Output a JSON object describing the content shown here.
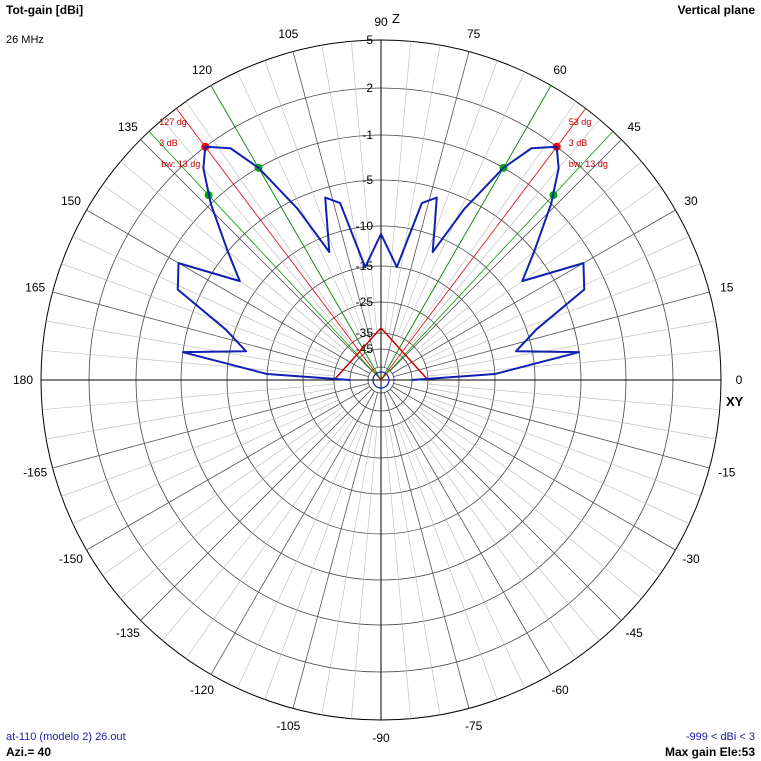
{
  "header": {
    "title_left": "Tot-gain [dBi]",
    "frequency": "26 MHz",
    "title_right": "Vertical plane"
  },
  "footer": {
    "file": "at-110 (modelo 2) 26.out",
    "azimuth": "Azi.= 40",
    "range": "-999 < dBi < 3",
    "max_gain": "Max gain Ele:53"
  },
  "axis_labels": {
    "z": "Z",
    "xy": "XY"
  },
  "colors": {
    "pattern": "#1020b0",
    "grid": "#b8b8b8",
    "axis": "#000000",
    "marker_max": "#ff0000",
    "marker_3db": "#00aa00",
    "beam_line_max": "#e00000",
    "beam_line_3db": "#009900"
  },
  "chart_data": {
    "type": "polar",
    "angle_unit": "deg",
    "angle_ticks": [
      0,
      15,
      30,
      45,
      60,
      75,
      90,
      105,
      120,
      135,
      150,
      165,
      180,
      -165,
      -150,
      -135,
      -120,
      -105,
      -90,
      -75,
      -60,
      -45,
      -30,
      -15
    ],
    "radial_ticks": [
      5,
      2,
      -1,
      -5,
      -10,
      -15,
      -25,
      -35,
      -45
    ],
    "radial_range_dbi": [
      -999,
      3
    ],
    "series": [
      {
        "points": [
          {
            "angle": 0,
            "gain": -45
          },
          {
            "angle": 3,
            "gain": -15
          },
          {
            "angle": 8,
            "gain": -5
          },
          {
            "angle": 12,
            "gain": -12
          },
          {
            "angle": 18,
            "gain": -9
          },
          {
            "angle": 24,
            "gain": -3
          },
          {
            "angle": 30,
            "gain": -2
          },
          {
            "angle": 35,
            "gain": -8
          },
          {
            "angle": 40,
            "gain": -5
          },
          {
            "angle": 46,
            "gain": -1
          },
          {
            "angle": 50,
            "gain": 1
          },
          {
            "angle": 53,
            "gain": 2
          },
          {
            "angle": 57,
            "gain": 1
          },
          {
            "angle": 60,
            "gain": -1
          },
          {
            "angle": 64,
            "gain": -6
          },
          {
            "angle": 68,
            "gain": -12
          },
          {
            "angle": 73,
            "gain": -6
          },
          {
            "angle": 77,
            "gain": -7
          },
          {
            "angle": 82,
            "gain": -15
          },
          {
            "angle": 90,
            "gain": -11
          },
          {
            "angle": 98,
            "gain": -15
          },
          {
            "angle": 103,
            "gain": -7
          },
          {
            "angle": 107,
            "gain": -6
          },
          {
            "angle": 112,
            "gain": -12
          },
          {
            "angle": 116,
            "gain": -6
          },
          {
            "angle": 120,
            "gain": -1
          },
          {
            "angle": 123,
            "gain": 1
          },
          {
            "angle": 127,
            "gain": 2
          },
          {
            "angle": 130,
            "gain": 1
          },
          {
            "angle": 134,
            "gain": -1
          },
          {
            "angle": 140,
            "gain": -5
          },
          {
            "angle": 145,
            "gain": -8
          },
          {
            "angle": 150,
            "gain": -2
          },
          {
            "angle": 156,
            "gain": -3
          },
          {
            "angle": 162,
            "gain": -9
          },
          {
            "angle": 168,
            "gain": -12
          },
          {
            "angle": 172,
            "gain": -5
          },
          {
            "angle": 177,
            "gain": -15
          },
          {
            "angle": 180,
            "gain": -45
          }
        ]
      }
    ],
    "beam_markers": [
      {
        "angle": 53,
        "label_angle": "53 dg",
        "label_3db": "3 dB",
        "label_bw": "bw: 13 dg",
        "lower_3db": 47,
        "upper_3db": 60
      },
      {
        "angle": 127,
        "label_angle": "127 dg",
        "label_3db": "3 dB",
        "label_bw": "bw: 13 dg",
        "lower_3db": 120,
        "upper_3db": 133
      }
    ],
    "grid": true
  }
}
